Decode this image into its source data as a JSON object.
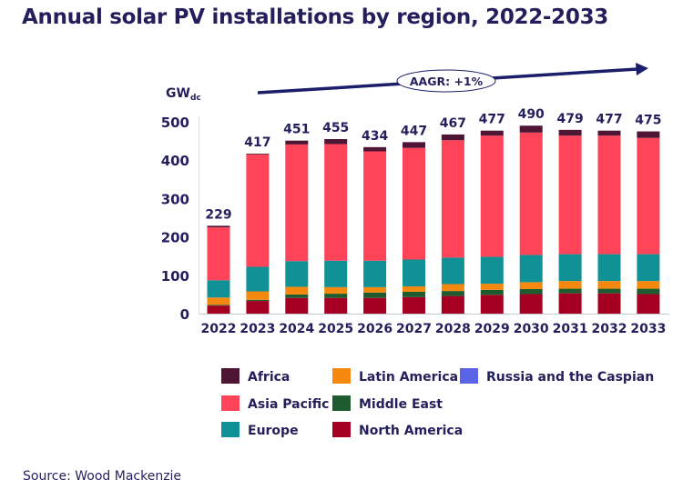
{
  "chart_data": {
    "type": "bar",
    "stacked": true,
    "title": "Annual solar PV installations by region, 2022-2033",
    "ylabel": "GW",
    "ylabel_subscript": "dc",
    "ylim": [
      0,
      500
    ],
    "yticks": [
      0,
      100,
      200,
      300,
      400,
      500
    ],
    "grid": false,
    "legend_position": "bottom",
    "categories": [
      "2022",
      "2023",
      "2024",
      "2025",
      "2026",
      "2027",
      "2028",
      "2029",
      "2030",
      "2031",
      "2032",
      "2033"
    ],
    "totals": [
      229,
      417,
      451,
      455,
      434,
      447,
      467,
      477,
      490,
      479,
      477,
      475
    ],
    "series": [
      {
        "name": "North America",
        "color": "#a50021",
        "values": [
          21,
          33,
          41,
          41,
          41,
          43,
          46,
          49,
          51,
          53,
          53,
          51
        ]
      },
      {
        "name": "Middle East",
        "color": "#1e5b2e",
        "values": [
          2,
          3,
          9,
          11,
          14,
          14,
          13,
          13,
          13,
          12,
          12,
          14
        ]
      },
      {
        "name": "Latin America",
        "color": "#f5890f",
        "values": [
          19,
          22,
          20,
          17,
          14,
          14,
          18,
          16,
          18,
          20,
          20,
          20
        ]
      },
      {
        "name": "Russia and the Caspian",
        "color": "#5b63e6",
        "values": [
          0,
          0,
          0,
          0,
          0,
          0,
          0,
          0,
          0,
          0,
          0,
          0
        ]
      },
      {
        "name": "Europe",
        "color": "#0f9196",
        "values": [
          45,
          64,
          67,
          69,
          69,
          70,
          69,
          70,
          71,
          70,
          70,
          70
        ]
      },
      {
        "name": "Asia Pacific",
        "color": "#ff4359",
        "values": [
          138,
          293,
          304,
          304,
          285,
          291,
          306,
          316,
          319,
          309,
          309,
          303
        ]
      },
      {
        "name": "Africa",
        "color": "#4f1535",
        "values": [
          4,
          2,
          10,
          13,
          11,
          15,
          15,
          13,
          18,
          15,
          13,
          17
        ]
      }
    ],
    "legend_order": [
      "Africa",
      "Latin America",
      "Russia and the Caspian",
      "Asia Pacific",
      "Middle East",
      "Europe",
      "North America"
    ],
    "annotation": "AAGR: +1%"
  },
  "source": "Source: Wood Mackenzie",
  "colors": {
    "text": "#231f5c",
    "arrow": "#1b1f6b"
  }
}
